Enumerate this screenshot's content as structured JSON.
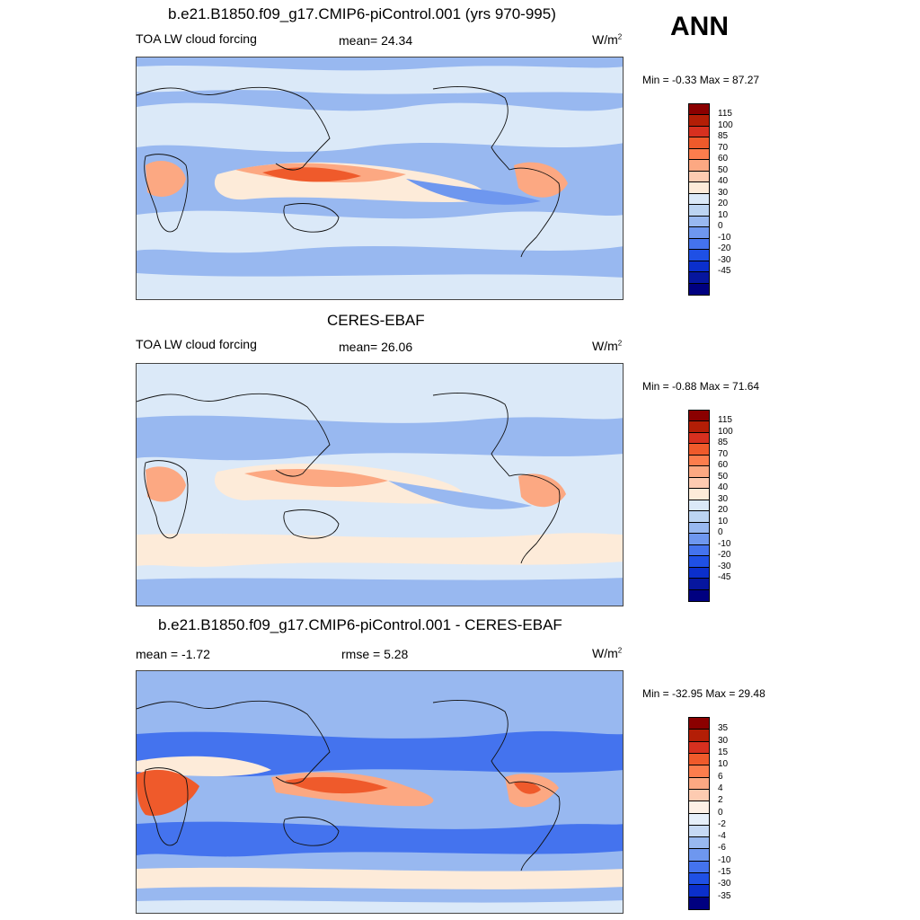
{
  "season": "ANN",
  "panels": [
    {
      "title": "b.e21.B1850.f09_g17.CMIP6-piControl.001 (yrs 970-995)",
      "left_label": "TOA LW cloud forcing",
      "center_label": "mean=  24.34",
      "unit_base": "W/m",
      "unit_exp": "2",
      "minmax": "Min =  -0.33 Max =  87.27",
      "levels": [
        "115",
        "100",
        "85",
        "70",
        "60",
        "50",
        "40",
        "30",
        "20",
        "10",
        "0",
        "-10",
        "-20",
        "-30",
        "-45"
      ],
      "colors": [
        "#8b0000",
        "#b31e06",
        "#d7301f",
        "#ef5a2b",
        "#fc7d4d",
        "#fca882",
        "#fdcbb1",
        "#fdebd9",
        "#dbe9f8",
        "#bcd4f2",
        "#98b8f0",
        "#6e97ef",
        "#4473ee",
        "#1f50e5",
        "#0b2fcc",
        "#06169e",
        "#000080"
      ]
    },
    {
      "title": "CERES-EBAF",
      "left_label": "TOA LW cloud forcing",
      "center_label": "mean=  26.06",
      "unit_base": "W/m",
      "unit_exp": "2",
      "minmax": "Min =  -0.88 Max =  71.64",
      "levels": [
        "115",
        "100",
        "85",
        "70",
        "60",
        "50",
        "40",
        "30",
        "20",
        "10",
        "0",
        "-10",
        "-20",
        "-30",
        "-45"
      ],
      "colors": [
        "#8b0000",
        "#b31e06",
        "#d7301f",
        "#ef5a2b",
        "#fc7d4d",
        "#fca882",
        "#fdcbb1",
        "#fdebd9",
        "#dbe9f8",
        "#bcd4f2",
        "#98b8f0",
        "#6e97ef",
        "#4473ee",
        "#1f50e5",
        "#0b2fcc",
        "#06169e",
        "#000080"
      ]
    },
    {
      "title": "b.e21.B1850.f09_g17.CMIP6-piControl.001 - CERES-EBAF",
      "left_label": "mean =  -1.72",
      "center_label": "rmse =   5.28",
      "unit_base": "W/m",
      "unit_exp": "2",
      "minmax": "Min = -32.95 Max =  29.48",
      "levels": [
        "35",
        "30",
        "15",
        "10",
        "6",
        "4",
        "2",
        "0",
        "-2",
        "-4",
        "-6",
        "-10",
        "-15",
        "-30",
        "-35"
      ],
      "colors": [
        "#8b0000",
        "#b31e06",
        "#d7301f",
        "#ef5a2b",
        "#fc7d4d",
        "#fca882",
        "#fdcbb1",
        "#fdf0e6",
        "#e6effa",
        "#c6d9f5",
        "#98b8f0",
        "#6e97ef",
        "#4473ee",
        "#1f50e5",
        "#0b2fcc",
        "#000080"
      ]
    }
  ],
  "map_colors": {
    "background": "#98b8f0",
    "band_light_blue": "#dbe9f8",
    "band_peach": "#fdebd9",
    "orange": "#fca882",
    "red": "#ef5a2b",
    "dark_blue": "#6e97ef",
    "diff_blue": "#4473ee",
    "land_line": "#111111"
  }
}
